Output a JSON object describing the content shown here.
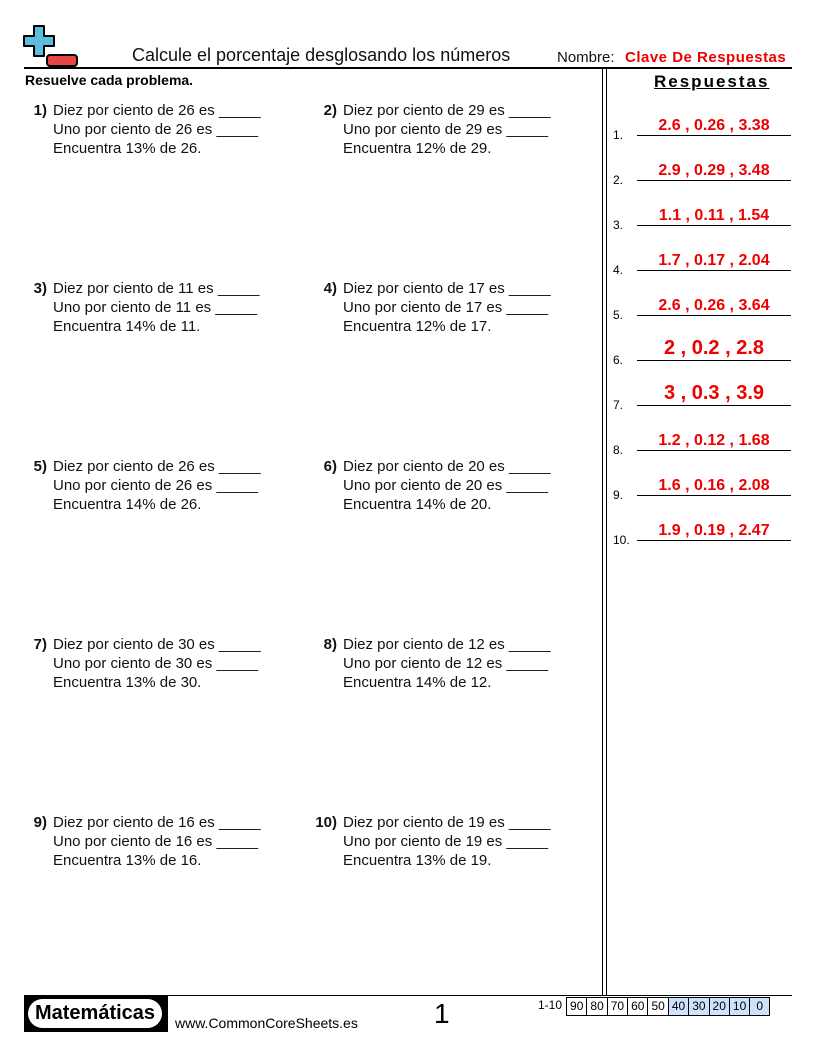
{
  "header": {
    "title": "Calcule el porcentaje desglosando los números",
    "name_label": "Nombre:",
    "name_value": "Clave De Respuestas",
    "instructions": "Resuelve cada problema.",
    "answers_title": "Respuestas"
  },
  "problems": [
    {
      "num": "1)",
      "l1": "Diez por ciento de 26 es _____",
      "l2": "Uno por ciento de 26 es _____",
      "l3": "Encuentra 13% de 26."
    },
    {
      "num": "2)",
      "l1": "Diez por ciento de 29 es _____",
      "l2": "Uno por ciento de 29 es _____",
      "l3": "Encuentra 12% de 29."
    },
    {
      "num": "3)",
      "l1": "Diez por ciento de 11 es _____",
      "l2": "Uno por ciento de 11 es _____",
      "l3": "Encuentra 14% de 11."
    },
    {
      "num": "4)",
      "l1": "Diez por ciento de 17 es _____",
      "l2": "Uno por ciento de 17 es _____",
      "l3": "Encuentra 12% de 17."
    },
    {
      "num": "5)",
      "l1": "Diez por ciento de 26 es _____",
      "l2": "Uno por ciento de 26 es _____",
      "l3": "Encuentra 14% de 26."
    },
    {
      "num": "6)",
      "l1": "Diez por ciento de 20 es _____",
      "l2": "Uno por ciento de 20 es _____",
      "l3": "Encuentra 14% de 20."
    },
    {
      "num": "7)",
      "l1": "Diez por ciento de 30 es _____",
      "l2": "Uno por ciento de 30 es _____",
      "l3": "Encuentra 13% de 30."
    },
    {
      "num": "8)",
      "l1": "Diez por ciento de 12 es _____",
      "l2": "Uno por ciento de 12 es _____",
      "l3": "Encuentra 14% de 12."
    },
    {
      "num": "9)",
      "l1": "Diez por ciento de 16 es _____",
      "l2": "Uno por ciento de 16 es _____",
      "l3": "Encuentra 13% de 16."
    },
    {
      "num": "10)",
      "l1": "Diez por ciento de 19 es _____",
      "l2": "Uno por ciento de 19 es _____",
      "l3": "Encuentra 13% de 19."
    }
  ],
  "answers": [
    {
      "n": "1.",
      "v": "2.6 , 0.26 , 3.38"
    },
    {
      "n": "2.",
      "v": "2.9 , 0.29 , 3.48"
    },
    {
      "n": "3.",
      "v": "1.1 , 0.11 , 1.54"
    },
    {
      "n": "4.",
      "v": "1.7 , 0.17 , 2.04"
    },
    {
      "n": "5.",
      "v": "2.6 , 0.26 , 3.64"
    },
    {
      "n": "6.",
      "v": "2 , 0.2 , 2.8"
    },
    {
      "n": "7.",
      "v": "3 , 0.3 , 3.9"
    },
    {
      "n": "8.",
      "v": "1.2 , 0.12 , 1.68"
    },
    {
      "n": "9.",
      "v": "1.6 , 0.16 , 2.08"
    },
    {
      "n": "10.",
      "v": "1.9 , 0.19 , 2.47"
    }
  ],
  "footer": {
    "brand": "Matemáticas",
    "site": "www.CommonCoreSheets.es",
    "page": "1",
    "score_label": "1-10",
    "scores": [
      "90",
      "80",
      "70",
      "60",
      "50",
      "40",
      "30",
      "20",
      "10",
      "0"
    ]
  },
  "colors": {
    "answer": "#ee0000",
    "logo_plus": "#5bbde0",
    "logo_minus": "#e84545",
    "score_highlight": "#cfe2fb"
  }
}
